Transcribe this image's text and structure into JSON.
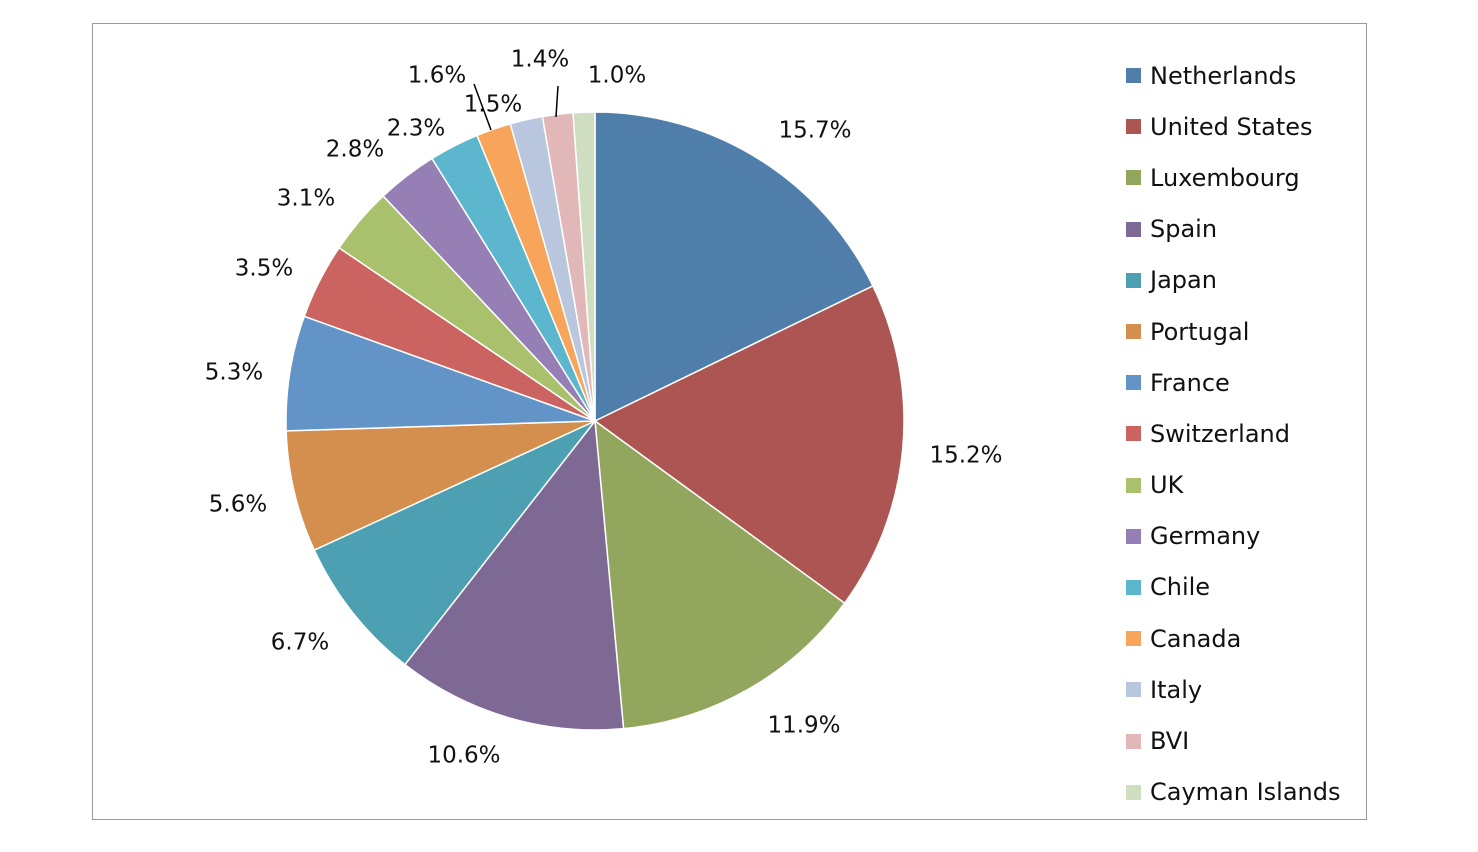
{
  "chart_data": {
    "type": "pie",
    "title": "",
    "start_angle_deg": 0,
    "direction": "clockwise",
    "legend_position": "right",
    "slices": [
      {
        "name": "Netherlands",
        "value": 15.7,
        "label": "15.7%",
        "color": "#4F7EAB"
      },
      {
        "name": "United States",
        "value": 15.2,
        "label": "15.2%",
        "color": "#AC5552"
      },
      {
        "name": "Luxembourg",
        "value": 11.9,
        "label": "11.9%",
        "color": "#93A65E"
      },
      {
        "name": "Spain",
        "value": 10.6,
        "label": "10.6%",
        "color": "#7E6995"
      },
      {
        "name": "Japan",
        "value": 6.7,
        "label": "6.7%",
        "color": "#4CA0B2"
      },
      {
        "name": "Portugal",
        "value": 5.6,
        "label": "5.6%",
        "color": "#D48E4E"
      },
      {
        "name": "France",
        "value": 5.3,
        "label": "5.3%",
        "color": "#6294C8"
      },
      {
        "name": "Switzerland",
        "value": 3.5,
        "label": "3.5%",
        "color": "#CB6460"
      },
      {
        "name": "UK",
        "value": 3.1,
        "label": "3.1%",
        "color": "#A9C16C"
      },
      {
        "name": "Germany",
        "value": 2.8,
        "label": "2.8%",
        "color": "#957FB4"
      },
      {
        "name": "Chile",
        "value": 2.3,
        "label": "2.3%",
        "color": "#5CB7CE"
      },
      {
        "name": "Canada",
        "value": 1.6,
        "label": "1.6%",
        "color": "#F7A55B"
      },
      {
        "name": "Italy",
        "value": 1.5,
        "label": "1.5%",
        "color": "#B8C7DE"
      },
      {
        "name": "BVI",
        "value": 1.4,
        "label": "1.4%",
        "color": "#E1B8B7"
      },
      {
        "name": "Cayman Islands",
        "value": 1.0,
        "label": "1.0%",
        "color": "#CFDDC0"
      }
    ]
  }
}
